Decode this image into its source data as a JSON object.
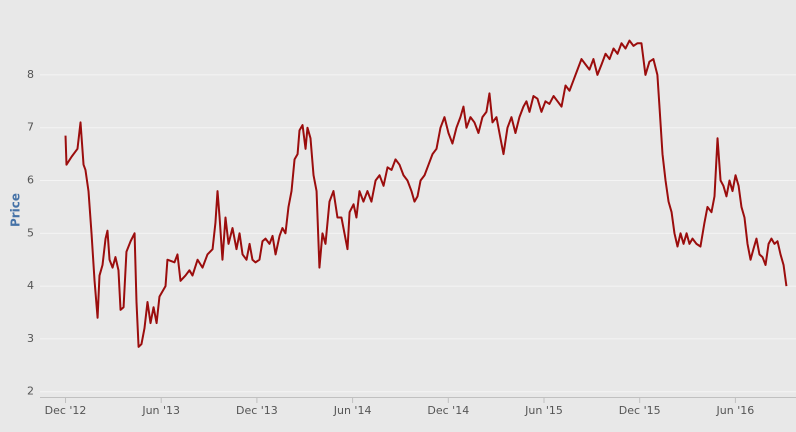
{
  "chart_data": {
    "type": "line",
    "ylabel": "Price",
    "color": "#9b0d0d",
    "grid": true,
    "xlim": [
      -1.6,
      45.8
    ],
    "ylim": [
      1.9,
      9.04
    ],
    "yticks": [
      2,
      3,
      4,
      5,
      6,
      7,
      8
    ],
    "xticks": [
      {
        "value": 0,
        "label": "Dec '12"
      },
      {
        "value": 6,
        "label": "Jun '13"
      },
      {
        "value": 12,
        "label": "Dec '13"
      },
      {
        "value": 18,
        "label": "Jun '14"
      },
      {
        "value": 24,
        "label": "Dec '14"
      },
      {
        "value": 30,
        "label": "Jun '15"
      },
      {
        "value": 36,
        "label": "Dec '15"
      },
      {
        "value": 42,
        "label": "Jun '16"
      }
    ],
    "x": [
      0,
      0.06,
      0.38,
      0.75,
      0.94,
      1.13,
      1.25,
      1.44,
      1.63,
      1.82,
      2.01,
      2.13,
      2.32,
      2.51,
      2.63,
      2.76,
      2.95,
      3.13,
      3.32,
      3.45,
      3.64,
      3.82,
      4.08,
      4.33,
      4.45,
      4.58,
      4.76,
      4.95,
      5.14,
      5.33,
      5.52,
      5.71,
      5.89,
      6.27,
      6.39,
      6.83,
      7.02,
      7.21,
      7.52,
      7.77,
      7.96,
      8.28,
      8.59,
      8.9,
      9.22,
      9.4,
      9.53,
      9.66,
      9.84,
      10.03,
      10.22,
      10.47,
      10.72,
      10.91,
      11.1,
      11.35,
      11.54,
      11.72,
      11.91,
      12.16,
      12.35,
      12.54,
      12.79,
      12.98,
      13.17,
      13.42,
      13.6,
      13.79,
      13.98,
      14.17,
      14.36,
      14.55,
      14.67,
      14.86,
      15.05,
      15.17,
      15.36,
      15.55,
      15.74,
      15.92,
      16.11,
      16.3,
      16.55,
      16.8,
      17.05,
      17.3,
      17.49,
      17.68,
      17.81,
      18.06,
      18.24,
      18.43,
      18.68,
      18.93,
      19.18,
      19.44,
      19.69,
      19.94,
      20.19,
      20.44,
      20.69,
      20.94,
      21.19,
      21.44,
      21.69,
      21.88,
      22.07,
      22.26,
      22.51,
      22.76,
      23.01,
      23.26,
      23.51,
      23.76,
      24.01,
      24.26,
      24.51,
      24.76,
      24.95,
      25.14,
      25.39,
      25.64,
      25.89,
      26.14,
      26.39,
      26.58,
      26.77,
      27.02,
      27.27,
      27.46,
      27.71,
      27.96,
      28.21,
      28.46,
      28.71,
      28.9,
      29.09,
      29.34,
      29.59,
      29.84,
      30.09,
      30.34,
      30.6,
      30.85,
      31.1,
      31.35,
      31.6,
      31.85,
      32.1,
      32.35,
      32.6,
      32.85,
      33.1,
      33.35,
      33.61,
      33.86,
      34.11,
      34.36,
      34.61,
      34.86,
      35.11,
      35.36,
      35.61,
      35.86,
      36.11,
      36.36,
      36.61,
      36.86,
      37.11,
      37.24,
      37.43,
      37.62,
      37.81,
      38.0,
      38.18,
      38.37,
      38.56,
      38.75,
      38.94,
      39.12,
      39.31,
      39.56,
      39.81,
      40.06,
      40.25,
      40.5,
      40.69,
      40.88,
      41.07,
      41.25,
      41.44,
      41.63,
      41.82,
      42.01,
      42.2,
      42.38,
      42.57,
      42.76,
      42.95,
      43.13,
      43.32,
      43.51,
      43.7,
      43.89,
      44.08,
      44.26,
      44.45,
      44.64,
      44.83,
      45.02,
      45.2
    ],
    "values": [
      6.85,
      6.3,
      6.45,
      6.6,
      7.1,
      6.3,
      6.2,
      5.8,
      5.0,
      4.1,
      3.4,
      4.2,
      4.4,
      4.9,
      5.05,
      4.5,
      4.35,
      4.55,
      4.3,
      3.55,
      3.6,
      4.65,
      4.85,
      5.0,
      3.7,
      2.85,
      2.9,
      3.2,
      3.7,
      3.3,
      3.6,
      3.3,
      3.8,
      4.0,
      4.5,
      4.45,
      4.6,
      4.1,
      4.2,
      4.3,
      4.2,
      4.5,
      4.35,
      4.6,
      4.7,
      5.2,
      5.8,
      5.3,
      4.5,
      5.3,
      4.8,
      5.1,
      4.7,
      5.0,
      4.6,
      4.5,
      4.8,
      4.5,
      4.45,
      4.5,
      4.85,
      4.9,
      4.8,
      4.95,
      4.6,
      4.95,
      5.1,
      5.0,
      5.5,
      5.8,
      6.4,
      6.5,
      6.95,
      7.05,
      6.6,
      7.0,
      6.8,
      6.1,
      5.8,
      4.35,
      5.0,
      4.8,
      5.6,
      5.8,
      5.3,
      5.3,
      5.0,
      4.7,
      5.4,
      5.55,
      5.3,
      5.8,
      5.6,
      5.8,
      5.6,
      6.0,
      6.1,
      5.9,
      6.25,
      6.2,
      6.4,
      6.3,
      6.1,
      6.0,
      5.8,
      5.6,
      5.7,
      6.0,
      6.1,
      6.3,
      6.5,
      6.6,
      7.0,
      7.2,
      6.9,
      6.7,
      7.0,
      7.2,
      7.4,
      7.0,
      7.2,
      7.1,
      6.9,
      7.2,
      7.3,
      7.65,
      7.1,
      7.2,
      6.8,
      6.5,
      7.0,
      7.2,
      6.9,
      7.2,
      7.4,
      7.5,
      7.3,
      7.6,
      7.55,
      7.3,
      7.5,
      7.45,
      7.6,
      7.5,
      7.4,
      7.8,
      7.7,
      7.9,
      8.1,
      8.3,
      8.2,
      8.1,
      8.3,
      8.0,
      8.2,
      8.4,
      8.3,
      8.5,
      8.4,
      8.6,
      8.5,
      8.65,
      8.55,
      8.6,
      8.6,
      8.0,
      8.25,
      8.3,
      8.0,
      7.4,
      6.5,
      6.0,
      5.6,
      5.4,
      5.0,
      4.75,
      5.0,
      4.8,
      5.0,
      4.8,
      4.9,
      4.8,
      4.75,
      5.2,
      5.5,
      5.4,
      5.7,
      6.8,
      6.0,
      5.9,
      5.7,
      6.0,
      5.8,
      6.1,
      5.9,
      5.5,
      5.3,
      4.8,
      4.5,
      4.7,
      4.9,
      4.6,
      4.55,
      4.4,
      4.8,
      4.9,
      4.8,
      4.85,
      4.6,
      4.4,
      4.0
    ]
  }
}
